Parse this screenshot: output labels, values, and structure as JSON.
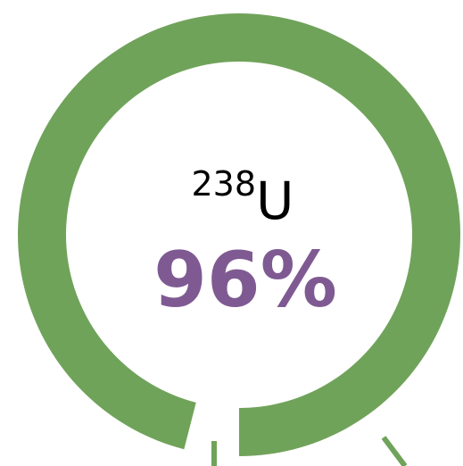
{
  "chart_data": {
    "type": "donut",
    "title_superscript": "238",
    "title": "U",
    "values": [
      96
    ],
    "value_labels": [
      "96%"
    ],
    "color": "#70a35a",
    "label_color": "#7f5a92"
  }
}
